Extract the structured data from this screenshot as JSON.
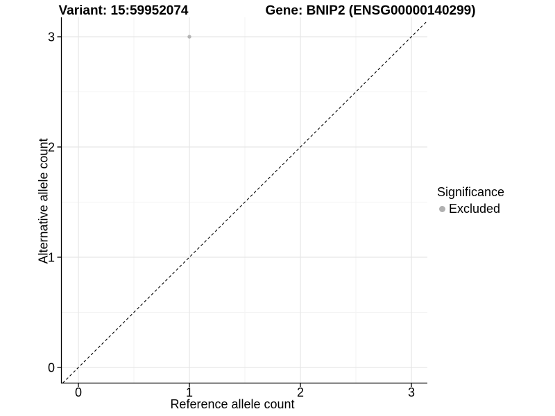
{
  "figure": {
    "title_variant": "Variant: 15:59952074",
    "title_gene": "Gene: BNIP2 (ENSG00000140299)"
  },
  "axes": {
    "x_label": "Reference allele count",
    "y_label": "Alternative allele count"
  },
  "legend": {
    "title": "Significance",
    "items": [
      {
        "label": "Excluded",
        "color": "#b0b0b0"
      }
    ]
  },
  "colors": {
    "background": "#ffffff",
    "grid_major": "#e6e6e6",
    "grid_minor": "#f3f3f3",
    "axis_line": "#000000",
    "tick_text": "#000000",
    "reference_line": "#000000",
    "point": "#b4b4b4"
  },
  "chart_data": {
    "type": "scatter",
    "title": "Variant: 15:59952074 | Gene: BNIP2 (ENSG00000140299)",
    "xlabel": "Reference allele count",
    "ylabel": "Alternative allele count",
    "xlim": [
      -0.15,
      3.15
    ],
    "ylim": [
      -0.15,
      3.15
    ],
    "x_ticks": [
      0,
      1,
      2,
      3
    ],
    "y_ticks": [
      0,
      1,
      2,
      3
    ],
    "x_minor_ticks": [
      0.5,
      1.5,
      2.5
    ],
    "y_minor_ticks": [
      0.5,
      1.5,
      2.5
    ],
    "grid": true,
    "legend_position": "right",
    "series": [
      {
        "name": "Excluded",
        "color": "#b4b4b4",
        "points": [
          {
            "x": 1,
            "y": 3
          }
        ]
      }
    ],
    "reference_line": {
      "type": "identity",
      "slope": 1,
      "intercept": 0,
      "style": "dashed"
    }
  }
}
